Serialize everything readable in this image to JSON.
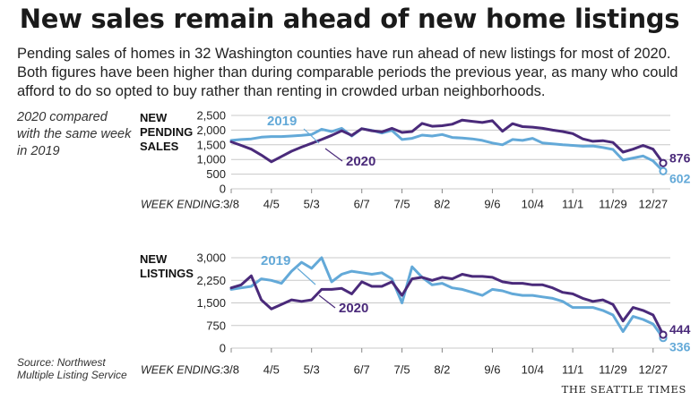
{
  "header": {
    "title": "New sales remain ahead of new home listings",
    "description": "Pending sales of homes in 32 Washington counties have run ahead of new listings for most of 2020. Both figures have been higher than during comparable periods the previous year, as many who could afford to do so opted to buy rather than renting in crowded urban neighborhoods.",
    "comparison_note": "2020 compared with the same week in 2019"
  },
  "footer": {
    "source": "Source: Northwest Multiple Listing Service",
    "brand": "THE SEATTLE TIMES"
  },
  "colors": {
    "series_2020": "#4a2a7a",
    "series_2019": "#63a9d8",
    "grid": "#c8c8c8"
  },
  "chart_data": [
    {
      "type": "line",
      "title": "NEW PENDING SALES",
      "title_lines": [
        "NEW",
        "PENDING",
        "SALES"
      ],
      "axis_caption": "WEEK ENDING:",
      "x_tick_labels": [
        "3/8",
        "4/5",
        "5/3",
        "6/7",
        "7/5",
        "8/2",
        "9/6",
        "10/4",
        "11/1",
        "11/29",
        "12/27"
      ],
      "x_tick_index": [
        0,
        4,
        8,
        13,
        17,
        21,
        26,
        30,
        34,
        38,
        42
      ],
      "ylim": [
        0,
        2500
      ],
      "yticks": [
        0,
        500,
        1000,
        1500,
        2000,
        2500
      ],
      "ytick_labels": [
        "0",
        "500",
        "1,000",
        "1,500",
        "2,000",
        "2,500"
      ],
      "grid": true,
      "series": [
        {
          "name": "2020",
          "values": [
            1600,
            1480,
            1350,
            1150,
            920,
            1100,
            1280,
            1420,
            1550,
            1680,
            1820,
            1980,
            1820,
            2050,
            1980,
            1940,
            2060,
            1920,
            1950,
            2230,
            2130,
            2150,
            2200,
            2340,
            2300,
            2260,
            2320,
            1960,
            2220,
            2120,
            2100,
            2060,
            2000,
            1950,
            1880,
            1700,
            1620,
            1640,
            1580,
            1250,
            1350,
            1480,
            1350,
            876
          ],
          "end_label": "876"
        },
        {
          "name": "2019",
          "values": [
            1650,
            1680,
            1700,
            1760,
            1780,
            1780,
            1800,
            1820,
            1850,
            2030,
            1950,
            2060,
            1800,
            2050,
            1990,
            1900,
            1990,
            1680,
            1720,
            1830,
            1800,
            1850,
            1750,
            1730,
            1700,
            1650,
            1560,
            1500,
            1680,
            1650,
            1720,
            1560,
            1530,
            1500,
            1480,
            1450,
            1460,
            1410,
            1340,
            980,
            1050,
            1120,
            950,
            602
          ],
          "end_label": "602"
        }
      ]
    },
    {
      "type": "line",
      "title": "NEW LISTINGS",
      "title_lines": [
        "NEW",
        "LISTINGS"
      ],
      "axis_caption": "WEEK ENDING:",
      "x_tick_labels": [
        "3/8",
        "4/5",
        "5/3",
        "6/7",
        "7/5",
        "8/2",
        "9/6",
        "10/4",
        "11/1",
        "11/29",
        "12/27"
      ],
      "x_tick_index": [
        0,
        4,
        8,
        13,
        17,
        21,
        26,
        30,
        34,
        38,
        42
      ],
      "ylim": [
        0,
        3000
      ],
      "yticks": [
        0,
        750,
        1500,
        2250,
        3000
      ],
      "ytick_labels": [
        "0",
        "750",
        "1,500",
        "2,250",
        "3,000"
      ],
      "grid": true,
      "series": [
        {
          "name": "2020",
          "values": [
            2000,
            2100,
            2400,
            1600,
            1300,
            1450,
            1600,
            1550,
            1600,
            1950,
            1950,
            1980,
            1800,
            2200,
            2050,
            2050,
            2200,
            1750,
            2300,
            2350,
            2250,
            2350,
            2300,
            2450,
            2380,
            2380,
            2350,
            2200,
            2150,
            2150,
            2100,
            2100,
            2000,
            1850,
            1800,
            1650,
            1550,
            1600,
            1450,
            900,
            1350,
            1250,
            1100,
            444
          ],
          "end_label": "444"
        },
        {
          "name": "2019",
          "values": [
            1950,
            2000,
            2050,
            2300,
            2250,
            2150,
            2550,
            2850,
            2650,
            3000,
            2200,
            2450,
            2550,
            2500,
            2450,
            2500,
            2300,
            1500,
            2700,
            2350,
            2100,
            2150,
            2000,
            1950,
            1850,
            1750,
            1950,
            1900,
            1800,
            1750,
            1750,
            1700,
            1650,
            1550,
            1350,
            1350,
            1350,
            1250,
            1100,
            550,
            1050,
            950,
            800,
            336
          ],
          "end_label": "336"
        }
      ]
    }
  ]
}
